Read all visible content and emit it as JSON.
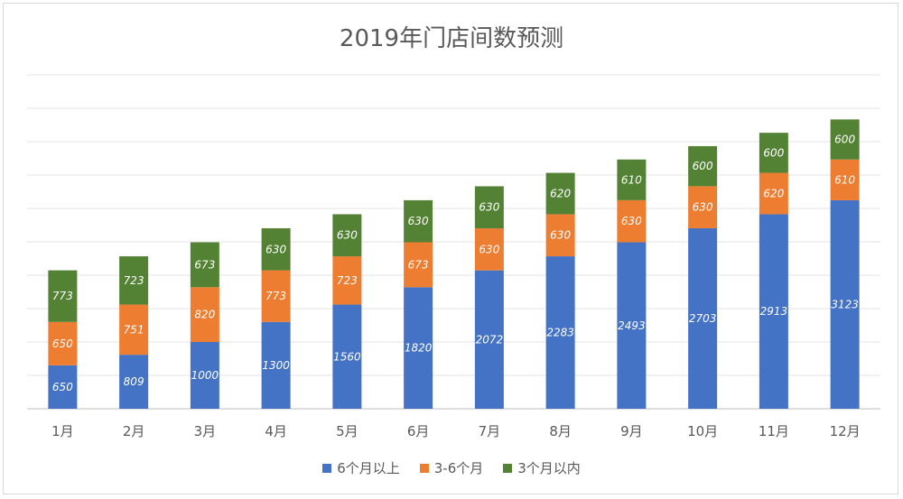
{
  "chart_data": {
    "type": "bar",
    "stacked": true,
    "title": "2019年门店间数预测",
    "categories": [
      "1月",
      "2月",
      "3月",
      "4月",
      "5月",
      "6月",
      "7月",
      "8月",
      "9月",
      "10月",
      "11月",
      "12月"
    ],
    "series": [
      {
        "name": "6个月以上",
        "color": "#4472C4",
        "values": [
          650,
          809,
          1000,
          1300,
          1560,
          1820,
          2072,
          2283,
          2493,
          2703,
          2913,
          3123
        ]
      },
      {
        "name": "3-6个月",
        "color": "#ED7D31",
        "values": [
          650,
          751,
          820,
          773,
          723,
          673,
          630,
          630,
          630,
          630,
          620,
          610
        ]
      },
      {
        "name": "3个月以内",
        "color": "#548235",
        "values": [
          773,
          723,
          673,
          630,
          630,
          630,
          630,
          620,
          610,
          600,
          600,
          600
        ]
      }
    ],
    "ylim": [
      0,
      5000
    ],
    "grid": true,
    "legend": "bottom"
  }
}
